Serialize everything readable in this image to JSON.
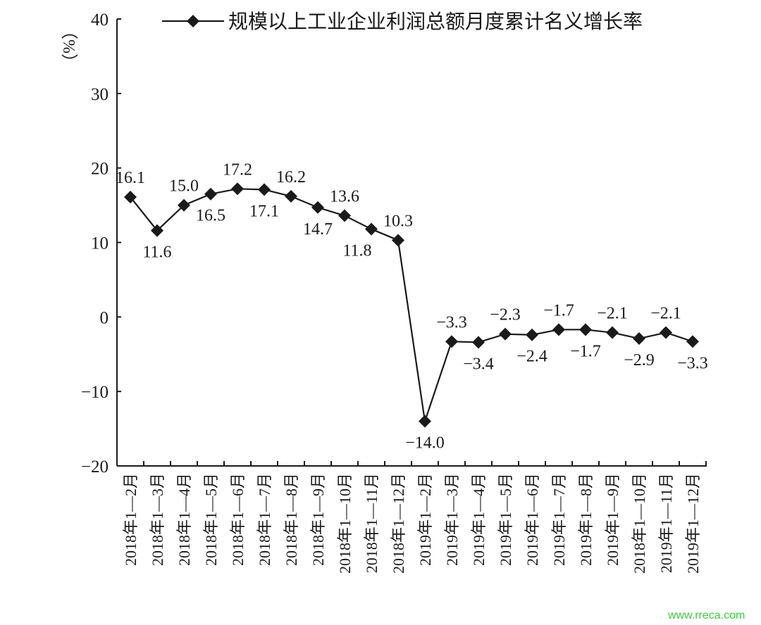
{
  "chart_data": {
    "type": "line",
    "title": "",
    "ylabel": "（%）",
    "ylim": [
      -20,
      40
    ],
    "yticks": [
      -20,
      -10,
      0,
      10,
      20,
      30,
      40
    ],
    "ytick_labels": [
      "−20",
      "−10",
      "0",
      "10",
      "20",
      "30",
      "40"
    ],
    "legend": {
      "label": "规模以上工业企业利润总额月度累计名义增长率",
      "placement": "top"
    },
    "categories": [
      "2018年1—2月",
      "2018年1—3月",
      "2018年1—4月",
      "2018年1—5月",
      "2018年1—6月",
      "2018年1—7月",
      "2018年1—8月",
      "2018年1—9月",
      "2018年1—10月",
      "2018年1—11月",
      "2018年1—12月",
      "2019年1—2月",
      "2019年1—3月",
      "2019年1—4月",
      "2019年1—5月",
      "2019年1—6月",
      "2019年1—7月",
      "2019年1—8月",
      "2019年1—9月",
      "2018年1—10月",
      "2019年1—11月",
      "2019年1—12月"
    ],
    "series": [
      {
        "name": "规模以上工业企业利润总额月度累计名义增长率",
        "values": [
          16.1,
          11.6,
          15.0,
          16.5,
          17.2,
          17.1,
          16.2,
          14.7,
          13.6,
          11.8,
          10.3,
          -14.0,
          -3.3,
          -3.4,
          -2.3,
          -2.4,
          -1.7,
          -1.7,
          -2.1,
          -2.9,
          -2.1,
          -3.3
        ]
      }
    ],
    "data_labels": [
      "16.1",
      "11.6",
      "15.0",
      "16.5",
      "17.2",
      "17.1",
      "16.2",
      "14.7",
      "13.6",
      "11.8",
      "10.3",
      "−14.0",
      "−3.3",
      "−3.4",
      "−2.3",
      "−2.4",
      "−1.7",
      "−1.7",
      "−2.1",
      "−2.9",
      "−2.1",
      "−3.3"
    ],
    "grid": false,
    "marker": "diamond",
    "color": "#1a1a1a"
  },
  "watermark": "www.rreca.com"
}
